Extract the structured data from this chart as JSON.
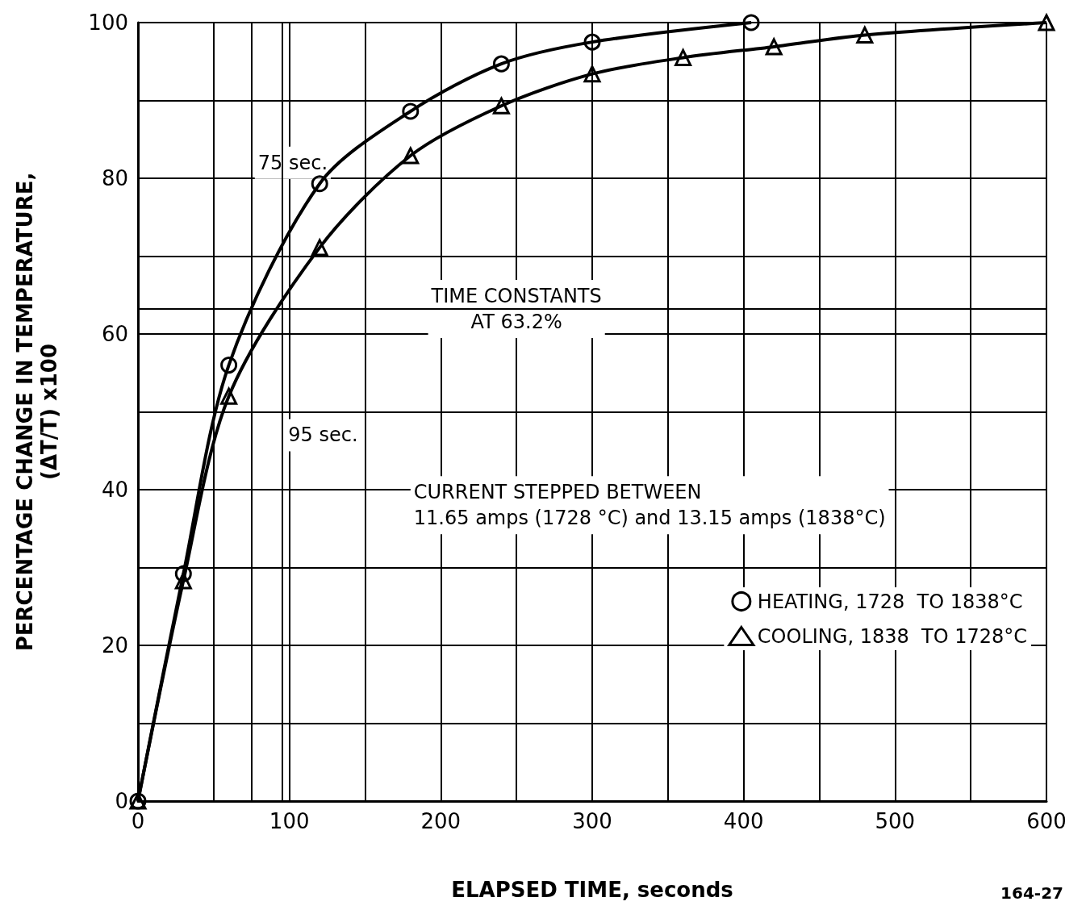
{
  "chart_data": {
    "type": "line",
    "xlabel": "ELAPSED TIME, seconds",
    "ylabel": "PERCENTAGE CHANGE IN TEMPERATURE,\n(ΔT/T) x100",
    "xlim": [
      0,
      600
    ],
    "xticks": [
      0,
      {
        "value": 50,
        "label": null
      },
      100,
      {
        "value": 150,
        "label": null
      },
      200,
      {
        "value": 250,
        "label": null
      },
      300,
      {
        "value": 350,
        "label": null
      },
      400,
      {
        "value": 450,
        "label": null
      },
      500,
      {
        "value": 550,
        "label": null
      },
      600
    ],
    "ylim": [
      0,
      100
    ],
    "yticks": [
      0,
      {
        "value": 10,
        "label": null
      },
      20,
      {
        "value": 30,
        "label": null
      },
      40,
      {
        "value": 50,
        "label": null
      },
      60,
      {
        "value": 70,
        "label": null
      },
      80,
      {
        "value": 90,
        "label": null
      },
      100
    ],
    "grid": true,
    "legend": "right",
    "line_style": "solid",
    "series": [
      {
        "name": "HEATING, 1728  TO 1838°C",
        "color": "#000000",
        "marker": "circle",
        "x": [
          0,
          30,
          60,
          120,
          180,
          240,
          300,
          405
        ],
        "values": [
          0,
          29.2,
          56,
          79.3,
          88.6,
          94.7,
          97.5,
          100
        ]
      },
      {
        "name": "COOLING, 1838  TO 1728°C",
        "color": "#000000",
        "marker": "triangle",
        "x": [
          0,
          30,
          60,
          120,
          180,
          240,
          300,
          360,
          420,
          480,
          600
        ],
        "values": [
          0,
          28.3,
          52,
          71.1,
          82.9,
          89.3,
          93.4,
          95.5,
          96.9,
          98.4,
          100
        ]
      }
    ],
    "ref_lines": [
      {
        "axis": "x",
        "value": 75,
        "label": "75 sec."
      },
      {
        "axis": "x",
        "value": 95,
        "label": "95 sec."
      },
      {
        "axis": "y",
        "value": 63.2,
        "label": "TIME CONSTANTS\nAT 63.2%"
      }
    ],
    "annotations": [
      "CURRENT STEPPED BETWEEN\n11.65 amps (1728 °C) and 13.15 amps (1838°C)",
      "164-27"
    ]
  }
}
